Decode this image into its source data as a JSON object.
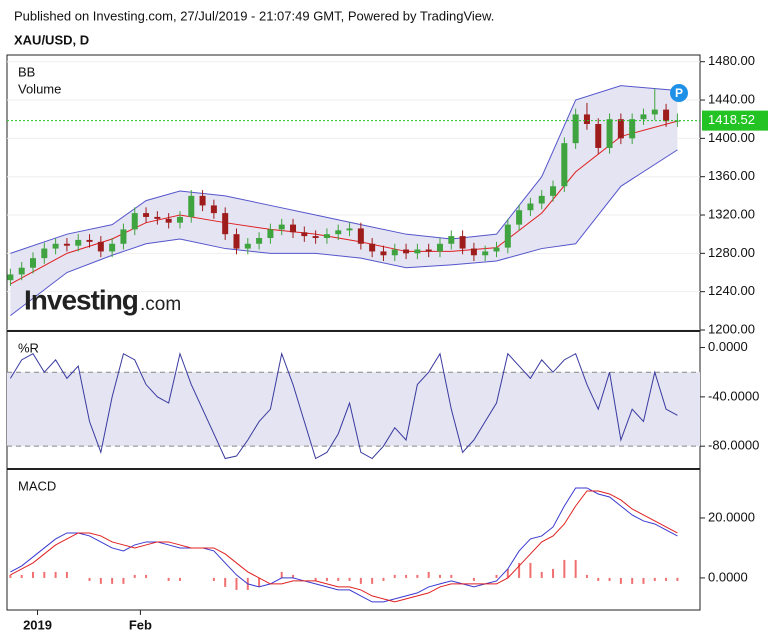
{
  "header": {
    "published": "Published on Investing.com, 27/Jul/2019 - 21:07:49 GMT, Powered by TradingView.",
    "symbol": "XAU/USD, D",
    "logo": "Investing",
    "logo_suffix": ".com",
    "badge": "P"
  },
  "chart_data": [
    {
      "type": "candlestick",
      "indicators": [
        "BB",
        "Volume"
      ],
      "xlim": [
        -0.3,
        61
      ],
      "ylim": [
        1200,
        1487
      ],
      "yticks": [
        {
          "value": 1200,
          "label": "1200.00"
        },
        {
          "value": 1240,
          "label": "1240.00"
        },
        {
          "value": 1280,
          "label": "1280.00"
        },
        {
          "value": 1320,
          "label": "1320.00"
        },
        {
          "value": 1360,
          "label": "1360.00"
        },
        {
          "value": 1400,
          "label": "1400.00"
        },
        {
          "value": 1440,
          "label": "1440.00"
        },
        {
          "value": 1480,
          "label": "1480.00"
        }
      ],
      "grid": true,
      "up_color": "#3fa33f",
      "down_color": "#9e1c1c",
      "last_price": 1418.52,
      "last_price_color": "#22c322",
      "candles": {
        "open": [
          1252,
          1258,
          1265,
          1275,
          1285,
          1290,
          1288,
          1294,
          1292,
          1282,
          1290,
          1305,
          1322,
          1318,
          1316,
          1312,
          1318,
          1340,
          1330,
          1322,
          1300,
          1285,
          1290,
          1296,
          1305,
          1310,
          1302,
          1298,
          1296,
          1300,
          1304,
          1306,
          1290,
          1282,
          1278,
          1284,
          1280,
          1284,
          1282,
          1290,
          1298,
          1285,
          1278,
          1282,
          1286,
          1310,
          1325,
          1332,
          1340,
          1350,
          1395,
          1425,
          1415,
          1390,
          1420,
          1400,
          1420,
          1425,
          1430,
          1418
        ],
        "high": [
          1264,
          1271,
          1281,
          1291,
          1296,
          1296,
          1300,
          1300,
          1298,
          1296,
          1311,
          1328,
          1328,
          1324,
          1322,
          1324,
          1346,
          1346,
          1336,
          1328,
          1306,
          1296,
          1302,
          1311,
          1316,
          1316,
          1308,
          1304,
          1306,
          1310,
          1312,
          1312,
          1296,
          1288,
          1290,
          1290,
          1290,
          1290,
          1296,
          1304,
          1304,
          1291,
          1288,
          1292,
          1316,
          1331,
          1338,
          1346,
          1356,
          1401,
          1431,
          1437,
          1421,
          1426,
          1426,
          1426,
          1431,
          1452,
          1436,
          1426
        ],
        "low": [
          1246,
          1252,
          1259,
          1269,
          1279,
          1282,
          1282,
          1286,
          1276,
          1276,
          1284,
          1299,
          1312,
          1310,
          1306,
          1306,
          1312,
          1324,
          1316,
          1294,
          1279,
          1279,
          1284,
          1290,
          1299,
          1296,
          1292,
          1290,
          1290,
          1294,
          1298,
          1284,
          1276,
          1272,
          1272,
          1274,
          1274,
          1276,
          1276,
          1284,
          1279,
          1272,
          1272,
          1276,
          1280,
          1304,
          1319,
          1326,
          1334,
          1344,
          1389,
          1409,
          1384,
          1384,
          1394,
          1394,
          1414,
          1419,
          1412,
          1412
        ],
        "close": [
          1258,
          1265,
          1275,
          1285,
          1290,
          1288,
          1294,
          1292,
          1282,
          1290,
          1305,
          1322,
          1318,
          1316,
          1312,
          1318,
          1340,
          1330,
          1322,
          1300,
          1285,
          1290,
          1296,
          1305,
          1310,
          1302,
          1298,
          1296,
          1300,
          1304,
          1306,
          1290,
          1282,
          1278,
          1284,
          1280,
          1284,
          1282,
          1290,
          1298,
          1285,
          1278,
          1282,
          1286,
          1310,
          1325,
          1332,
          1340,
          1350,
          1395,
          1425,
          1415,
          1390,
          1420,
          1400,
          1420,
          1425,
          1430,
          1418,
          1418.52
        ]
      },
      "bands": {
        "x": [
          0,
          5,
          9,
          12,
          15,
          19,
          23,
          27,
          31,
          35,
          39,
          43,
          47,
          50,
          54,
          59
        ],
        "upper": [
          1280,
          1300,
          1310,
          1335,
          1345,
          1340,
          1330,
          1320,
          1310,
          1300,
          1295,
          1300,
          1360,
          1440,
          1455,
          1450
        ],
        "middle": [
          1248,
          1280,
          1295,
          1312,
          1320,
          1312,
          1305,
          1300,
          1292,
          1282,
          1282,
          1286,
          1322,
          1365,
          1402,
          1418
        ],
        "lower": [
          1215,
          1260,
          1278,
          1290,
          1295,
          1285,
          1280,
          1280,
          1275,
          1265,
          1268,
          1272,
          1285,
          1290,
          1350,
          1388
        ],
        "band_color": "#5555cc",
        "middle_color": "#e02020",
        "fill": "#e4e4f2"
      }
    },
    {
      "type": "line",
      "title": "%R",
      "xlim": [
        -0.3,
        61
      ],
      "ylim": [
        -97.7,
        12.6
      ],
      "yticks": [
        {
          "value": 0,
          "label": "0.0000"
        },
        {
          "value": -40,
          "label": "-40.0000"
        },
        {
          "value": -80,
          "label": "-80.0000"
        }
      ],
      "levels": [
        -20,
        -80
      ],
      "fill": "#e4e4f2",
      "series": [
        {
          "style": "line",
          "color": "#3a3aa0",
          "values": [
            -25,
            -10,
            -5,
            -20,
            -10,
            -25,
            -15,
            -60,
            -85,
            -40,
            -5,
            -10,
            -30,
            -40,
            -45,
            -5,
            -30,
            -50,
            -70,
            -90,
            -88,
            -75,
            -60,
            -50,
            -5,
            -30,
            -60,
            -90,
            -85,
            -70,
            -45,
            -85,
            -90,
            -80,
            -65,
            -75,
            -30,
            -20,
            -5,
            -50,
            -85,
            -75,
            -60,
            -45,
            -5,
            -15,
            -25,
            -10,
            -20,
            -10,
            -5,
            -30,
            -50,
            -20,
            -75,
            -50,
            -60,
            -20,
            -50,
            -55
          ]
        }
      ]
    },
    {
      "type": "line",
      "title": "MACD",
      "xlim": [
        -0.3,
        61
      ],
      "ylim": [
        -10.7,
        36
      ],
      "yticks": [
        {
          "value": 0,
          "label": "0.0000"
        },
        {
          "value": 20,
          "label": "20.0000"
        }
      ],
      "xticks": [
        {
          "value": 2.4,
          "label": "2019"
        },
        {
          "value": 11.5,
          "label": "Feb"
        }
      ],
      "series": [
        {
          "style": "bar",
          "color": "#f07070",
          "values": [
            1,
            1,
            2,
            2,
            2,
            2,
            0,
            -1,
            -2,
            -2,
            -2,
            1,
            1,
            0,
            -1,
            -1,
            0,
            0,
            -1,
            -3,
            -4,
            -4,
            -3,
            0,
            2,
            1,
            0,
            -1,
            -1,
            -1,
            -1,
            -2,
            -2,
            -1,
            1,
            1,
            1,
            2,
            1,
            1,
            0,
            -1,
            0,
            1,
            3,
            5,
            5,
            2,
            3,
            6,
            6,
            1,
            -1,
            -1,
            -2,
            -2,
            -2,
            -1,
            -1,
            -1
          ]
        },
        {
          "style": "line",
          "color": "#3a3ad0",
          "values": [
            2,
            4,
            7,
            10,
            13,
            15,
            15,
            14,
            12,
            10,
            9,
            11,
            12,
            12,
            11,
            10,
            10,
            10,
            9,
            5,
            1,
            -2,
            -3,
            -2,
            0,
            0,
            -1,
            -2,
            -3,
            -4,
            -4,
            -6,
            -8,
            -8,
            -7,
            -6,
            -5,
            -3,
            -2,
            -1,
            -2,
            -3,
            -2,
            -1,
            3,
            9,
            13,
            14,
            17,
            24,
            30,
            30,
            28,
            27,
            24,
            21,
            19,
            18,
            16,
            14
          ]
        },
        {
          "style": "line",
          "color": "#e02020",
          "values": [
            1,
            3,
            5,
            8,
            11,
            13,
            15,
            15,
            14,
            12,
            11,
            10,
            11,
            12,
            12,
            11,
            10,
            10,
            10,
            8,
            5,
            2,
            0,
            -2,
            -2,
            -1,
            -1,
            -1,
            -2,
            -3,
            -3,
            -4,
            -6,
            -7,
            -8,
            -7,
            -6,
            -5,
            -3,
            -2,
            -2,
            -2,
            -2,
            -2,
            0,
            4,
            8,
            12,
            14,
            18,
            24,
            29,
            29,
            28,
            26,
            23,
            21,
            19,
            17,
            15
          ]
        }
      ]
    }
  ]
}
